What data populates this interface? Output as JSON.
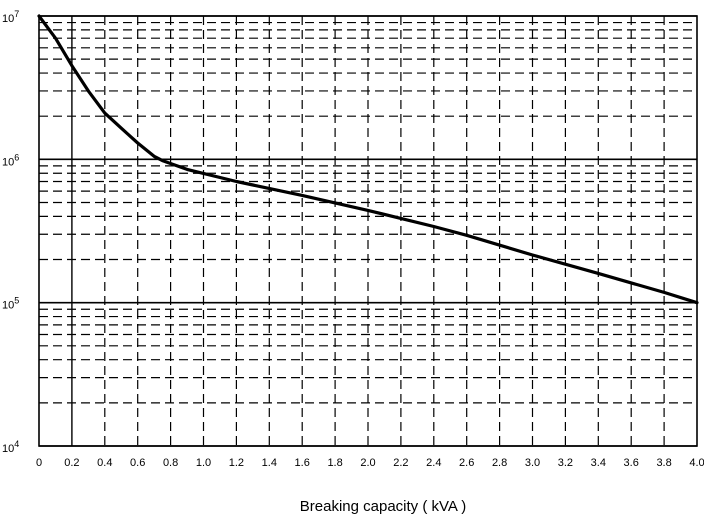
{
  "chart_data": {
    "type": "line",
    "title": "",
    "xlabel": "Breaking capacity ( kVA )",
    "ylabel": "",
    "xlim": [
      0,
      4.0
    ],
    "ylim": [
      10000,
      10000000
    ],
    "yscale": "log",
    "grid": {
      "major": "solid",
      "minor": "dashed"
    },
    "x_ticks": [
      "0",
      "0.2",
      "0.4",
      "0.6",
      "0.8",
      "1.0",
      "1.2",
      "1.4",
      "1.6",
      "1.8",
      "2.0",
      "2.2",
      "2.4",
      "2.6",
      "2.8",
      "3.0",
      "3.2",
      "3.4",
      "3.6",
      "3.8",
      "4.0"
    ],
    "y_ticks": [
      {
        "base": "10",
        "exp": "4",
        "value": 10000
      },
      {
        "base": "10",
        "exp": "5",
        "value": 100000
      },
      {
        "base": "10",
        "exp": "6",
        "value": 1000000
      },
      {
        "base": "10",
        "exp": "7",
        "value": 10000000
      }
    ],
    "series": [
      {
        "color": "#000000",
        "x": [
          0,
          0.1,
          0.2,
          0.3,
          0.4,
          0.5,
          0.6,
          0.7,
          0.75,
          0.9,
          1.2,
          1.6,
          2.0,
          2.4,
          2.6,
          3.0,
          3.4,
          3.8,
          4.0
        ],
        "y": [
          10000000,
          7000000,
          4500000,
          3000000,
          2100000,
          1650000,
          1300000,
          1050000,
          980000,
          850000,
          700000,
          560000,
          440000,
          340000,
          295000,
          215000,
          160000,
          118000,
          100000
        ]
      }
    ]
  }
}
